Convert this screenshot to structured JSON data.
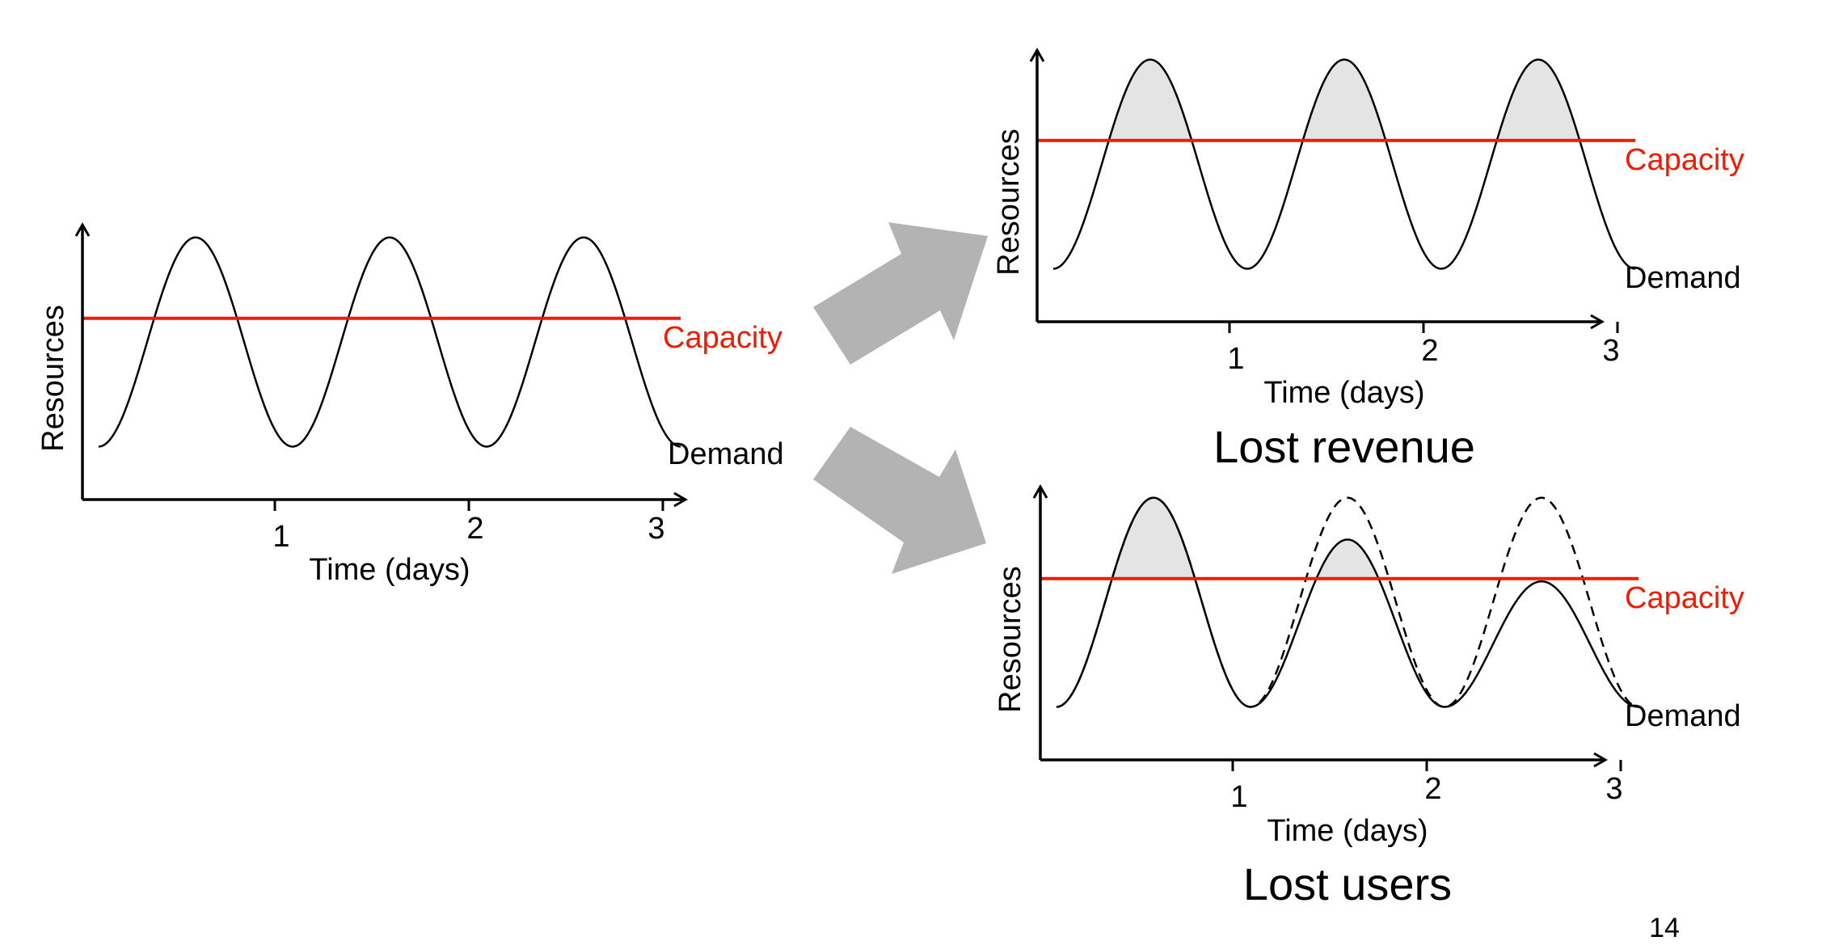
{
  "colors": {
    "capacity": "#ee1c00",
    "demand": "#000000",
    "lost_fill": "#e4e4e4",
    "arrow": "#b3b3b3"
  },
  "chart_data": [
    {
      "id": "left",
      "type": "line",
      "xlabel": "Time (days)",
      "ylabel": "Resources",
      "x_ticks": [
        "1",
        "2",
        "3"
      ],
      "xlim": [
        0,
        3
      ],
      "ylim": [
        0,
        1
      ],
      "series": [
        {
          "name": "Capacity",
          "kind": "constant",
          "value": 0.65
        },
        {
          "name": "Demand",
          "kind": "periodic",
          "period_days": 1,
          "min": 0.19,
          "max": 0.94,
          "peak_day_offset": 0.5
        }
      ],
      "caption": ""
    },
    {
      "id": "top-right",
      "type": "line",
      "xlabel": "Time (days)",
      "ylabel": "Resources",
      "x_ticks": [
        "1",
        "2",
        "3"
      ],
      "xlim": [
        0,
        3
      ],
      "ylim": [
        0,
        1
      ],
      "series": [
        {
          "name": "Capacity",
          "kind": "constant",
          "value": 0.65
        },
        {
          "name": "Demand",
          "kind": "periodic",
          "period_days": 1,
          "min": 0.19,
          "max": 0.94,
          "peak_day_offset": 0.5
        }
      ],
      "shading": "demand above capacity",
      "caption": "Lost revenue"
    },
    {
      "id": "bottom-right",
      "type": "line",
      "xlabel": "Time (days)",
      "ylabel": "Resources",
      "x_ticks": [
        "1",
        "2",
        "3"
      ],
      "xlim": [
        0,
        3
      ],
      "ylim": [
        0,
        1
      ],
      "series": [
        {
          "name": "Capacity",
          "kind": "constant",
          "value": 0.65
        },
        {
          "name": "Demand",
          "kind": "periodic",
          "period_days": 1,
          "min": 0.19,
          "peak_maxima": [
            0.94,
            0.79,
            0.64
          ]
        },
        {
          "kind": "periodic",
          "style": "dashed",
          "period_days": 1,
          "min": 0.19,
          "max": 0.94
        }
      ],
      "shading": "demand above capacity",
      "caption": "Lost users"
    }
  ],
  "page_number": "14"
}
